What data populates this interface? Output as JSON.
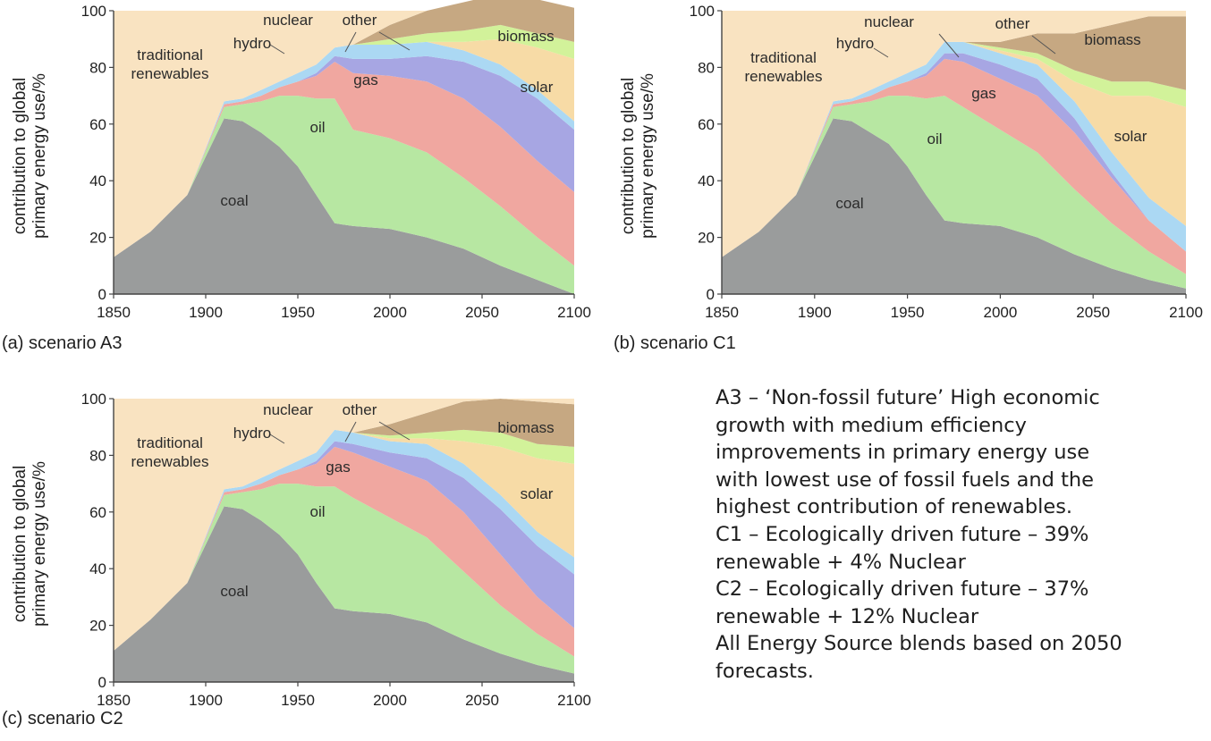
{
  "colors": {
    "coal": "#9a9c9c",
    "oil": "#b7e7a2",
    "gas": "#f0a7a0",
    "nuclear": "#a7a6e3",
    "hydro": "#abd8f3",
    "other": "#d2f29a",
    "biomass": "#c6a882",
    "solar": "#f7dba6",
    "traditional": "#f9e3c1"
  },
  "chart_data": [
    {
      "id": "A3",
      "type": "area",
      "stacked": true,
      "title": "(a) scenario A3",
      "xlabel": "",
      "ylabel": [
        "contribution to global",
        "primary energy use/%"
      ],
      "xlim": [
        1850,
        2100
      ],
      "ylim": [
        0,
        100
      ],
      "xticks": [
        "1850",
        "1900",
        "1950",
        "2000",
        "2050",
        "2100"
      ],
      "yticks": [
        "0",
        "20",
        "40",
        "60",
        "80",
        "100"
      ],
      "x": [
        1850,
        1870,
        1890,
        1910,
        1920,
        1930,
        1940,
        1950,
        1960,
        1970,
        1980,
        2000,
        2020,
        2040,
        2060,
        2080,
        2100
      ],
      "series": [
        {
          "name": "coal",
          "label": "coal",
          "values": [
            13,
            22,
            35,
            62,
            61,
            57,
            52,
            45,
            35,
            25,
            24,
            23,
            20,
            16,
            10,
            5,
            0
          ]
        },
        {
          "name": "oil",
          "label": "oil",
          "values": [
            0,
            0,
            0,
            4,
            6,
            11,
            18,
            25,
            34,
            44,
            34,
            32,
            30,
            25,
            21,
            15,
            10
          ]
        },
        {
          "name": "gas",
          "label": "gas",
          "values": [
            0,
            0,
            0,
            1,
            1,
            2,
            3,
            5,
            8,
            13,
            20,
            22,
            25,
            28,
            28,
            27,
            26
          ]
        },
        {
          "name": "nuclear",
          "label": "nuclear",
          "values": [
            0,
            0,
            0,
            0,
            0,
            0,
            0,
            0,
            1,
            2,
            5,
            6,
            9,
            13,
            18,
            22,
            22
          ]
        },
        {
          "name": "hydro",
          "label": "hydro",
          "values": [
            0,
            0,
            0,
            1,
            1,
            2,
            2,
            3,
            3,
            3,
            5,
            5,
            5,
            4,
            4,
            3,
            3
          ]
        },
        {
          "name": "solar",
          "label": "solar",
          "values": [
            0,
            0,
            0,
            0,
            0,
            0,
            0,
            0,
            0,
            0,
            0,
            0,
            0,
            3,
            9,
            15,
            22
          ]
        },
        {
          "name": "other",
          "label": "other",
          "values": [
            0,
            0,
            0,
            0,
            0,
            0,
            0,
            0,
            0,
            0,
            0,
            2,
            3,
            4,
            5,
            5,
            6
          ]
        },
        {
          "name": "biomass",
          "label": "biomass",
          "values": [
            0,
            0,
            0,
            0,
            0,
            0,
            0,
            0,
            0,
            0,
            0,
            5,
            8,
            10,
            11,
            12,
            12
          ]
        },
        {
          "name": "traditional",
          "label": [
            "traditional",
            "renewables"
          ],
          "values": [
            87,
            78,
            65,
            32,
            31,
            28,
            25,
            22,
            19,
            13,
            12,
            5,
            0,
            0,
            0,
            0,
            0
          ]
        }
      ]
    },
    {
      "id": "C1",
      "type": "area",
      "stacked": true,
      "title": "(b) scenario C1",
      "xlabel": "",
      "ylabel": [
        "contribution to global",
        "primary energy use/%"
      ],
      "xlim": [
        1850,
        2100
      ],
      "ylim": [
        0,
        100
      ],
      "xticks": [
        "1850",
        "1900",
        "1950",
        "2000",
        "2050",
        "2100"
      ],
      "yticks": [
        "0",
        "20",
        "40",
        "60",
        "80",
        "100"
      ],
      "x": [
        1850,
        1870,
        1890,
        1910,
        1920,
        1930,
        1940,
        1950,
        1960,
        1970,
        1980,
        2000,
        2020,
        2040,
        2060,
        2080,
        2100
      ],
      "series": [
        {
          "name": "coal",
          "label": "coal",
          "values": [
            13,
            22,
            35,
            62,
            61,
            57,
            53,
            45,
            35,
            26,
            25,
            24,
            20,
            14,
            9,
            5,
            2
          ]
        },
        {
          "name": "oil",
          "label": "oil",
          "values": [
            0,
            0,
            0,
            4,
            6,
            11,
            17,
            25,
            34,
            44,
            41,
            34,
            30,
            23,
            16,
            10,
            5
          ]
        },
        {
          "name": "gas",
          "label": "gas",
          "values": [
            0,
            0,
            0,
            1,
            1,
            2,
            3,
            5,
            8,
            13,
            16,
            18,
            20,
            20,
            16,
            11,
            8
          ]
        },
        {
          "name": "nuclear",
          "label": "nuclear",
          "values": [
            0,
            0,
            0,
            0,
            0,
            0,
            0,
            0,
            1,
            2,
            3,
            5,
            6,
            5,
            2,
            0,
            0
          ]
        },
        {
          "name": "hydro",
          "label": "hydro",
          "values": [
            0,
            0,
            0,
            1,
            1,
            2,
            2,
            3,
            3,
            4,
            4,
            4,
            5,
            6,
            7,
            8,
            9
          ]
        },
        {
          "name": "solar",
          "label": "solar",
          "values": [
            0,
            0,
            0,
            0,
            0,
            0,
            0,
            0,
            0,
            0,
            0,
            1,
            2,
            7,
            20,
            36,
            42
          ]
        },
        {
          "name": "other",
          "label": "other",
          "values": [
            0,
            0,
            0,
            0,
            0,
            0,
            0,
            0,
            0,
            0,
            0,
            1,
            2,
            4,
            5,
            5,
            6
          ]
        },
        {
          "name": "biomass",
          "label": "biomass",
          "values": [
            0,
            0,
            0,
            0,
            0,
            0,
            0,
            0,
            0,
            0,
            0,
            2,
            7,
            13,
            20,
            23,
            26
          ]
        },
        {
          "name": "traditional",
          "label": [
            "traditional",
            "renewables"
          ],
          "values": [
            87,
            78,
            65,
            32,
            31,
            28,
            25,
            22,
            19,
            11,
            11,
            11,
            8,
            8,
            5,
            2,
            2
          ]
        }
      ]
    },
    {
      "id": "C2",
      "type": "area",
      "stacked": true,
      "title": "(c) scenario C2",
      "xlabel": "",
      "ylabel": [
        "contribution to global",
        "primary energy use/%"
      ],
      "xlim": [
        1850,
        2100
      ],
      "ylim": [
        0,
        100
      ],
      "xticks": [
        "1850",
        "1900",
        "1950",
        "2000",
        "2050",
        "2100"
      ],
      "yticks": [
        "0",
        "20",
        "40",
        "60",
        "80",
        "100"
      ],
      "x": [
        1850,
        1870,
        1890,
        1910,
        1920,
        1930,
        1940,
        1950,
        1960,
        1970,
        1980,
        2000,
        2020,
        2040,
        2060,
        2080,
        2100
      ],
      "series": [
        {
          "name": "coal",
          "label": "coal",
          "values": [
            11,
            22,
            35,
            62,
            61,
            57,
            52,
            45,
            35,
            26,
            25,
            24,
            21,
            15,
            10,
            6,
            3
          ]
        },
        {
          "name": "oil",
          "label": "oil",
          "values": [
            0,
            0,
            0,
            4,
            6,
            11,
            18,
            25,
            34,
            43,
            40,
            34,
            30,
            24,
            17,
            11,
            6
          ]
        },
        {
          "name": "gas",
          "label": "gas",
          "values": [
            0,
            0,
            0,
            1,
            1,
            2,
            3,
            5,
            8,
            14,
            16,
            18,
            20,
            21,
            18,
            13,
            10
          ]
        },
        {
          "name": "nuclear",
          "label": "nuclear",
          "values": [
            0,
            0,
            0,
            0,
            0,
            0,
            0,
            0,
            1,
            2,
            3,
            5,
            8,
            12,
            16,
            18,
            19
          ]
        },
        {
          "name": "hydro",
          "label": "hydro",
          "values": [
            0,
            0,
            0,
            1,
            1,
            2,
            2,
            3,
            3,
            4,
            4,
            4,
            5,
            5,
            5,
            5,
            6
          ]
        },
        {
          "name": "solar",
          "label": "solar",
          "values": [
            0,
            0,
            0,
            0,
            0,
            0,
            0,
            0,
            0,
            0,
            0,
            1,
            2,
            8,
            17,
            26,
            33
          ]
        },
        {
          "name": "other",
          "label": "other",
          "values": [
            0,
            0,
            0,
            0,
            0,
            0,
            0,
            0,
            0,
            0,
            0,
            1,
            2,
            4,
            5,
            5,
            6
          ]
        },
        {
          "name": "biomass",
          "label": "biomass",
          "values": [
            0,
            0,
            0,
            0,
            0,
            0,
            0,
            0,
            0,
            0,
            0,
            4,
            7,
            10,
            12,
            15,
            15
          ]
        },
        {
          "name": "traditional",
          "label": [
            "traditional",
            "renewables"
          ],
          "values": [
            89,
            78,
            65,
            32,
            31,
            28,
            25,
            22,
            19,
            11,
            12,
            9,
            5,
            1,
            0,
            1,
            2
          ]
        }
      ]
    }
  ],
  "description": {
    "lines": [
      "A3 – ‘Non-fossil future’ High economic",
      "growth with medium efficiency",
      "improvements in primary energy use",
      "with lowest use of fossil fuels and the",
      "highest contribution of renewables.",
      "C1 – Ecologically driven future – 39%",
      "renewable + 4% Nuclear",
      "C2 – Ecologically driven future – 37%",
      "renewable + 12% Nuclear",
      "All Energy Source blends based on 2050",
      "forecasts."
    ]
  }
}
